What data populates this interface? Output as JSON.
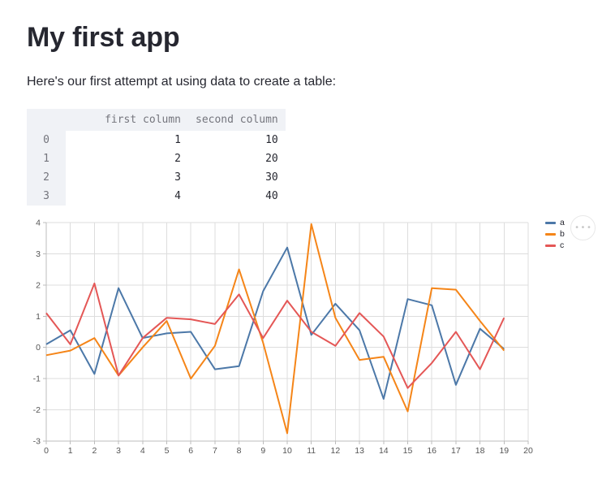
{
  "page": {
    "title": "My first app",
    "intro": "Here's our first attempt at using data to create a table:"
  },
  "table": {
    "columns": [
      "first column",
      "second column"
    ],
    "rows": [
      {
        "index": "0",
        "values": [
          "1",
          "10"
        ]
      },
      {
        "index": "1",
        "values": [
          "2",
          "20"
        ]
      },
      {
        "index": "2",
        "values": [
          "3",
          "30"
        ]
      },
      {
        "index": "3",
        "values": [
          "4",
          "40"
        ]
      }
    ]
  },
  "chart_data": {
    "type": "line",
    "title": "",
    "xlabel": "",
    "ylabel": "",
    "x": [
      0,
      1,
      2,
      3,
      4,
      5,
      6,
      7,
      8,
      9,
      10,
      11,
      12,
      13,
      14,
      15,
      16,
      17,
      18,
      19
    ],
    "series": [
      {
        "name": "a",
        "color": "#4c78a8",
        "values": [
          0.1,
          0.55,
          -0.85,
          1.9,
          0.3,
          0.45,
          0.5,
          -0.7,
          -0.6,
          1.8,
          3.2,
          0.4,
          1.4,
          0.55,
          -1.65,
          1.55,
          1.35,
          -1.2,
          0.6,
          -0.05
        ]
      },
      {
        "name": "b",
        "color": "#f58518",
        "values": [
          -0.25,
          -0.1,
          0.3,
          -0.9,
          0.0,
          0.85,
          -1.0,
          0.05,
          2.5,
          0.15,
          -2.75,
          3.95,
          0.95,
          -0.4,
          -0.3,
          -2.05,
          1.9,
          1.85,
          0.85,
          -0.1
        ]
      },
      {
        "name": "c",
        "color": "#e45756",
        "values": [
          1.1,
          0.1,
          2.05,
          -0.9,
          0.3,
          0.95,
          0.9,
          0.75,
          1.7,
          0.3,
          1.5,
          0.5,
          0.05,
          1.1,
          0.35,
          -1.3,
          -0.5,
          0.5,
          -0.7,
          0.95
        ]
      }
    ],
    "xlim": [
      0,
      20
    ],
    "ylim": [
      -3,
      4
    ],
    "x_ticks": [
      0,
      1,
      2,
      3,
      4,
      5,
      6,
      7,
      8,
      9,
      10,
      11,
      12,
      13,
      14,
      15,
      16,
      17,
      18,
      19,
      20
    ],
    "y_ticks": [
      -3,
      -2,
      -1,
      0,
      1,
      2,
      3,
      4
    ],
    "grid": true,
    "legend_position": "top-right",
    "legend_entries": [
      "a",
      "b",
      "c"
    ]
  },
  "chart_menu": {
    "dots": "•••"
  },
  "colors": {
    "grid": "#dddddd",
    "axis": "#bcbcbc",
    "tick_label": "#555555",
    "table_header_bg": "#f0f2f6",
    "text": "#262730"
  }
}
